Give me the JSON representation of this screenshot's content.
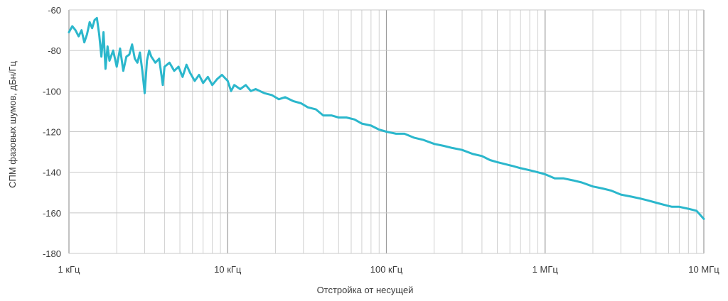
{
  "chart_data": {
    "type": "line",
    "title": "",
    "xlabel": "Отстройка от несущей",
    "ylabel": "СПМ фазовых шумов, дБн/Гц",
    "x_scale": "log",
    "xlim": [
      1000,
      10000000
    ],
    "ylim": [
      -180,
      -60
    ],
    "x_ticks": [
      {
        "value": 1000,
        "label": "1 кГц"
      },
      {
        "value": 10000,
        "label": "10 кГц"
      },
      {
        "value": 100000,
        "label": "100 кГц"
      },
      {
        "value": 1000000,
        "label": "1 МГц"
      },
      {
        "value": 10000000,
        "label": "10 МГц"
      }
    ],
    "y_ticks": [
      -60,
      -80,
      -100,
      -120,
      -140,
      -160,
      -180
    ],
    "grid": true,
    "legend": "none",
    "series": [
      {
        "color": "#2bb7cc",
        "points": [
          [
            1000,
            -71
          ],
          [
            1050,
            -68
          ],
          [
            1100,
            -70
          ],
          [
            1150,
            -73
          ],
          [
            1200,
            -70
          ],
          [
            1250,
            -76
          ],
          [
            1300,
            -72
          ],
          [
            1350,
            -66
          ],
          [
            1400,
            -69
          ],
          [
            1450,
            -65
          ],
          [
            1500,
            -64
          ],
          [
            1550,
            -72
          ],
          [
            1600,
            -83
          ],
          [
            1650,
            -71
          ],
          [
            1700,
            -89
          ],
          [
            1750,
            -78
          ],
          [
            1800,
            -85
          ],
          [
            1900,
            -80
          ],
          [
            2000,
            -88
          ],
          [
            2100,
            -79
          ],
          [
            2200,
            -90
          ],
          [
            2300,
            -83
          ],
          [
            2400,
            -82
          ],
          [
            2500,
            -77
          ],
          [
            2600,
            -84
          ],
          [
            2700,
            -86
          ],
          [
            2800,
            -81
          ],
          [
            2900,
            -90
          ],
          [
            3000,
            -101
          ],
          [
            3100,
            -85
          ],
          [
            3200,
            -80
          ],
          [
            3300,
            -83
          ],
          [
            3500,
            -86
          ],
          [
            3700,
            -84
          ],
          [
            3900,
            -97
          ],
          [
            4000,
            -88
          ],
          [
            4300,
            -86
          ],
          [
            4600,
            -90
          ],
          [
            4900,
            -88
          ],
          [
            5200,
            -93
          ],
          [
            5500,
            -87
          ],
          [
            5800,
            -91
          ],
          [
            6200,
            -95
          ],
          [
            6600,
            -92
          ],
          [
            7000,
            -96
          ],
          [
            7500,
            -93
          ],
          [
            8000,
            -97
          ],
          [
            8600,
            -94
          ],
          [
            9200,
            -92
          ],
          [
            10000,
            -95
          ],
          [
            10500,
            -100
          ],
          [
            11000,
            -97
          ],
          [
            12000,
            -99
          ],
          [
            13000,
            -97
          ],
          [
            14000,
            -100
          ],
          [
            15000,
            -99
          ],
          [
            17000,
            -101
          ],
          [
            19000,
            -102
          ],
          [
            21000,
            -104
          ],
          [
            23000,
            -103
          ],
          [
            26000,
            -105
          ],
          [
            29000,
            -106
          ],
          [
            32000,
            -108
          ],
          [
            36000,
            -109
          ],
          [
            40000,
            -112
          ],
          [
            45000,
            -112
          ],
          [
            50000,
            -113
          ],
          [
            56000,
            -113
          ],
          [
            63000,
            -114
          ],
          [
            70000,
            -116
          ],
          [
            80000,
            -117
          ],
          [
            90000,
            -119
          ],
          [
            100000,
            -120
          ],
          [
            115000,
            -121
          ],
          [
            130000,
            -121
          ],
          [
            150000,
            -123
          ],
          [
            170000,
            -124
          ],
          [
            200000,
            -126
          ],
          [
            230000,
            -127
          ],
          [
            260000,
            -128
          ],
          [
            300000,
            -129
          ],
          [
            350000,
            -131
          ],
          [
            400000,
            -132
          ],
          [
            450000,
            -134
          ],
          [
            500000,
            -135
          ],
          [
            560000,
            -136
          ],
          [
            630000,
            -137
          ],
          [
            700000,
            -138
          ],
          [
            800000,
            -139
          ],
          [
            900000,
            -140
          ],
          [
            1000000,
            -141
          ],
          [
            1150000,
            -143
          ],
          [
            1300000,
            -143
          ],
          [
            1500000,
            -144
          ],
          [
            1700000,
            -145
          ],
          [
            2000000,
            -147
          ],
          [
            2300000,
            -148
          ],
          [
            2600000,
            -149
          ],
          [
            3000000,
            -151
          ],
          [
            3500000,
            -152
          ],
          [
            4000000,
            -153
          ],
          [
            4500000,
            -154
          ],
          [
            5000000,
            -155
          ],
          [
            5600000,
            -156
          ],
          [
            6300000,
            -157
          ],
          [
            7000000,
            -157
          ],
          [
            8000000,
            -158
          ],
          [
            9000000,
            -159
          ],
          [
            10000000,
            -163
          ]
        ]
      }
    ]
  }
}
